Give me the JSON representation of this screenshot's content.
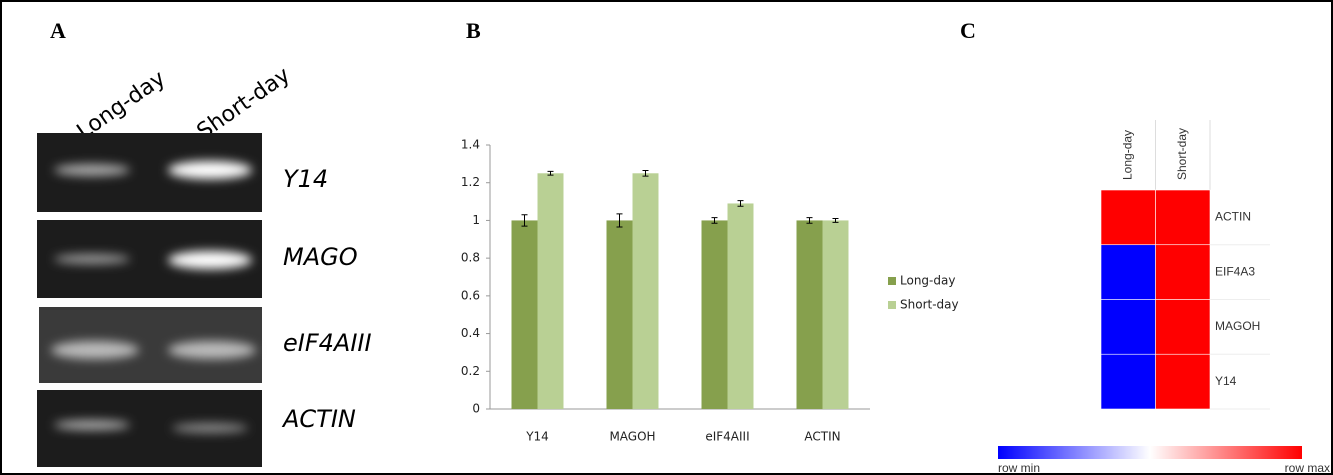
{
  "panel_labels": [
    "A",
    "B",
    "C"
  ],
  "gel": {
    "lanes": [
      "Long-day",
      "Short-day"
    ],
    "genes": [
      "Y14",
      "MAGO",
      "eIF4AIII",
      "ACTIN"
    ]
  },
  "chart_data": [
    {
      "type": "bar",
      "categories": [
        "Y14",
        "MAGOH",
        "eIF4AIII",
        "ACTIN"
      ],
      "series": [
        {
          "name": "Long-day",
          "color": "#86a04d",
          "values": [
            1,
            1,
            1,
            1
          ],
          "errors": [
            0.03,
            0.035,
            0.015,
            0.015
          ]
        },
        {
          "name": "Short-day",
          "color": "#b9d094",
          "values": [
            1.25,
            1.25,
            1.09,
            1
          ],
          "errors": [
            0.01,
            0.015,
            0.015,
            0.01
          ]
        }
      ],
      "ylim": [
        0,
        1.4
      ],
      "yticks": [
        0,
        0.2,
        0.4,
        0.6,
        0.8,
        1,
        1.2,
        1.4
      ],
      "legend": "right"
    },
    {
      "type": "heatmap",
      "x": [
        "Long-day",
        "Short-day"
      ],
      "y": [
        "ACTIN",
        "EIF4A3",
        "MAGOH",
        "Y14"
      ],
      "values": [
        [
          1,
          1
        ],
        [
          -1,
          1
        ],
        [
          -1,
          1
        ],
        [
          -1,
          1
        ]
      ],
      "colors": {
        "low": "#0000ff",
        "mid": "#ffffff",
        "high": "#ff0000"
      },
      "colorbar_labels": [
        "row min",
        "row max"
      ]
    }
  ]
}
